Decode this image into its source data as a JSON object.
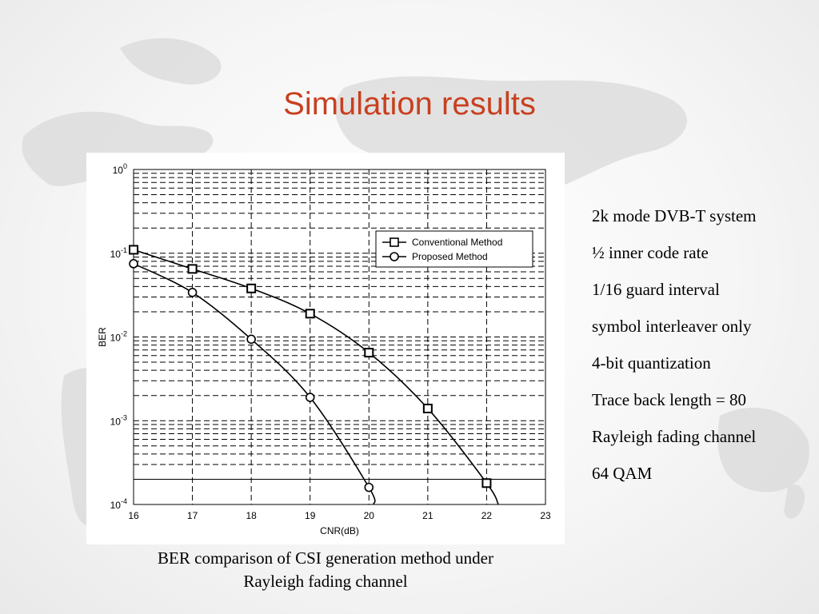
{
  "slide": {
    "title": "Simulation results",
    "caption_lines": [
      "BER comparison of CSI generation method under",
      "Rayleigh fading channel"
    ],
    "params": [
      "2k mode DVB-T system",
      "½ inner code rate",
      "1/16 guard interval",
      "symbol interleaver only",
      "4-bit quantization",
      "Trace back length = 80",
      "Rayleigh fading channel",
      "64 QAM"
    ],
    "colors": {
      "title": "#c8401f",
      "curve": "#000000",
      "grid": "#000000"
    }
  },
  "chart_data": {
    "type": "line",
    "title": "",
    "xlabel": "CNR(dB)",
    "ylabel": "BER",
    "xlim": [
      16,
      23
    ],
    "ylim": [
      0.0001,
      1
    ],
    "yscale": "log",
    "xticks": [
      "16",
      "17",
      "18",
      "19",
      "20",
      "21",
      "22",
      "23"
    ],
    "yticks": [
      {
        "base": "10",
        "exp": "0"
      },
      {
        "base": "10",
        "exp": "-1"
      },
      {
        "base": "10",
        "exp": "-2"
      },
      {
        "base": "10",
        "exp": "-3"
      },
      {
        "base": "10",
        "exp": "-4"
      }
    ],
    "grid": true,
    "legend": "top-right",
    "series": [
      {
        "name": "Conventional Method",
        "marker": "square",
        "x": [
          16,
          17,
          18,
          19,
          20,
          21,
          22
        ],
        "y": [
          0.11,
          0.065,
          0.038,
          0.019,
          0.0065,
          0.0014,
          0.00018
        ],
        "curve_end": [
          22.2,
          0.0001
        ]
      },
      {
        "name": "Proposed Method",
        "marker": "circle",
        "x": [
          16,
          17,
          18,
          19,
          20
        ],
        "y": [
          0.075,
          0.034,
          0.0094,
          0.0019,
          0.00016
        ],
        "curve_end": [
          20.08,
          0.0001
        ]
      }
    ]
  }
}
